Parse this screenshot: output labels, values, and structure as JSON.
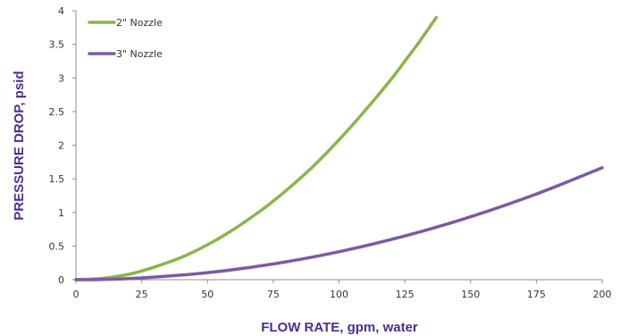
{
  "chart_data": {
    "type": "line",
    "xlabel": "FLOW RATE, gpm, water",
    "ylabel": "PRESSURE DROP, psid",
    "xlim": [
      0,
      200
    ],
    "ylim": [
      0,
      4
    ],
    "xticks": [
      0,
      25,
      50,
      75,
      100,
      125,
      150,
      175,
      200
    ],
    "yticks": [
      0,
      0.5,
      1,
      1.5,
      2,
      2.5,
      3,
      3.5,
      4
    ],
    "grid": false,
    "legend_position": "top-left",
    "series": [
      {
        "name": "2\" Nozzle",
        "color": "#8ab54a",
        "x": [
          0,
          10,
          20,
          25,
          30,
          40,
          50,
          60,
          70,
          75,
          80,
          90,
          100,
          110,
          120,
          125,
          130,
          137
        ],
        "y": [
          0,
          0.02,
          0.08,
          0.13,
          0.19,
          0.33,
          0.52,
          0.75,
          1.02,
          1.17,
          1.33,
          1.68,
          2.08,
          2.52,
          2.99,
          3.25,
          3.51,
          3.9
        ]
      },
      {
        "name": "3\" Nozzle",
        "color": "#7b5aa6",
        "x": [
          0,
          10,
          25,
          50,
          75,
          100,
          125,
          150,
          175,
          200
        ],
        "y": [
          0,
          0.004,
          0.026,
          0.104,
          0.234,
          0.416,
          0.65,
          0.936,
          1.274,
          1.664
        ]
      }
    ]
  }
}
